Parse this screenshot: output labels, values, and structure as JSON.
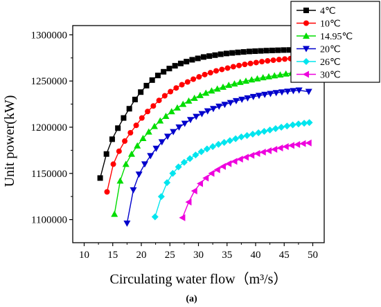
{
  "chart_data": {
    "type": "line",
    "xlabel": "Circulating water flow（m³/s）",
    "ylabel": "Unit power(kW)",
    "panel_label": "(a)",
    "xlim": [
      8,
      52
    ],
    "ylim": [
      1075000,
      1310000
    ],
    "xticks": [
      10,
      15,
      20,
      25,
      30,
      35,
      40,
      45,
      50
    ],
    "yticks": [
      1100000,
      1150000,
      1200000,
      1250000,
      1300000
    ],
    "xtick_labels": [
      "10",
      "15",
      "20",
      "25",
      "30",
      "35",
      "40",
      "45",
      "50"
    ],
    "ytick_labels": [
      "1100000",
      "1150000",
      "1200000",
      "1250000",
      "1300000"
    ],
    "legend_position": "top-right",
    "series": [
      {
        "name": "4℃",
        "color": "#000000",
        "marker": "square",
        "x": [
          12.8,
          13.9,
          14.9,
          15.9,
          16.9,
          17.9,
          18.9,
          19.9,
          20.9,
          21.9,
          22.9,
          23.9,
          24.9,
          25.9,
          26.9,
          27.9,
          28.9,
          29.9,
          30.9,
          31.9,
          32.9,
          33.9,
          34.9,
          35.9,
          36.9,
          37.9,
          38.9,
          39.9,
          40.9,
          41.9,
          42.9,
          43.9,
          44.9,
          45.9,
          46.9,
          47.9,
          48.9,
          49.4
        ],
        "y": [
          1145000,
          1171000,
          1187000,
          1199000,
          1210000,
          1220000,
          1230000,
          1238000,
          1245000,
          1251000,
          1256000,
          1260000,
          1263500,
          1266500,
          1269000,
          1271000,
          1273000,
          1274500,
          1276000,
          1277000,
          1278000,
          1279000,
          1279800,
          1280400,
          1281000,
          1281500,
          1282000,
          1282300,
          1282600,
          1282900,
          1283100,
          1283300,
          1283500,
          1283600,
          1283700,
          1283800,
          1283900,
          1284000
        ]
      },
      {
        "name": "10℃",
        "color": "#ff0000",
        "marker": "circle",
        "x": [
          14.0,
          15.1,
          16.1,
          17.1,
          18.1,
          19.1,
          20.1,
          21.1,
          22.1,
          23.1,
          24.1,
          25.1,
          26.1,
          27.1,
          28.1,
          29.1,
          30.1,
          31.1,
          32.1,
          33.1,
          34.1,
          35.1,
          36.1,
          37.1,
          38.1,
          39.1,
          40.1,
          41.1,
          42.1,
          43.1,
          44.1,
          45.1,
          46.1,
          47.1,
          48.1,
          49.4
        ],
        "y": [
          1130000,
          1160000,
          1174000,
          1185000,
          1194000,
          1202000,
          1210000,
          1217000,
          1223000,
          1229000,
          1234000,
          1238500,
          1242500,
          1246000,
          1249000,
          1252000,
          1254500,
          1257000,
          1259000,
          1261000,
          1262500,
          1264000,
          1265500,
          1266800,
          1268000,
          1269000,
          1270000,
          1271000,
          1271800,
          1272500,
          1273200,
          1273800,
          1274300,
          1274800,
          1275200,
          1276000
        ]
      },
      {
        "name": "14.95℃",
        "color": "#00dd00",
        "marker": "triangle-up",
        "x": [
          15.3,
          16.3,
          17.3,
          18.3,
          19.3,
          20.3,
          21.3,
          22.3,
          23.3,
          24.3,
          25.3,
          26.3,
          27.3,
          28.3,
          29.3,
          30.3,
          31.3,
          32.3,
          33.3,
          34.3,
          35.3,
          36.3,
          37.3,
          38.3,
          39.3,
          40.3,
          41.3,
          42.3,
          43.3,
          44.3,
          45.3,
          46.3,
          47.3,
          48.3,
          49.3
        ],
        "y": [
          1106000,
          1142000,
          1160000,
          1171000,
          1180000,
          1188000,
          1195000,
          1201000,
          1207000,
          1212000,
          1217000,
          1221000,
          1225000,
          1228500,
          1231500,
          1234500,
          1237000,
          1239500,
          1241500,
          1243500,
          1245500,
          1247000,
          1248700,
          1250000,
          1251400,
          1252600,
          1253800,
          1254800,
          1255800,
          1256800,
          1257800,
          1258600,
          1259400,
          1260200,
          1262000
        ]
      },
      {
        "name": "20℃",
        "color": "#0000cc",
        "marker": "triangle-down",
        "x": [
          17.5,
          18.6,
          19.6,
          20.6,
          21.6,
          22.6,
          23.6,
          24.6,
          25.6,
          26.6,
          27.6,
          28.6,
          29.6,
          30.6,
          31.6,
          32.6,
          33.6,
          34.6,
          35.6,
          36.6,
          37.6,
          38.6,
          39.6,
          40.6,
          41.6,
          42.6,
          43.6,
          44.6,
          45.6,
          46.6,
          47.6,
          49.3
        ],
        "y": [
          1096000,
          1132000,
          1149000,
          1160000,
          1169000,
          1177000,
          1184000,
          1190000,
          1195000,
          1200000,
          1204000,
          1208000,
          1211500,
          1214500,
          1217500,
          1220000,
          1222500,
          1224500,
          1226500,
          1228500,
          1230000,
          1231500,
          1233000,
          1234200,
          1235300,
          1236300,
          1237200,
          1238000,
          1238700,
          1239400,
          1240000,
          1238500
        ]
      },
      {
        "name": "26℃",
        "color": "#00e5ee",
        "marker": "diamond",
        "x": [
          22.4,
          23.5,
          24.5,
          25.5,
          26.5,
          27.5,
          28.5,
          29.5,
          30.5,
          31.5,
          32.5,
          33.5,
          34.5,
          35.5,
          36.5,
          37.5,
          38.5,
          39.5,
          40.5,
          41.5,
          42.5,
          43.5,
          44.5,
          45.5,
          46.5,
          47.5,
          48.5,
          49.4
        ],
        "y": [
          1103000,
          1125000,
          1140000,
          1150000,
          1157000,
          1162000,
          1166000,
          1170000,
          1173500,
          1176500,
          1179000,
          1181500,
          1183500,
          1185500,
          1187500,
          1189500,
          1191000,
          1192500,
          1194000,
          1195500,
          1197000,
          1198500,
          1200000,
          1201300,
          1202500,
          1203500,
          1204300,
          1205000
        ]
      },
      {
        "name": "30℃",
        "color": "#ee00dd",
        "marker": "triangle-left",
        "x": [
          27.2,
          28.3,
          29.3,
          30.3,
          31.3,
          32.3,
          33.3,
          34.3,
          35.3,
          36.3,
          37.3,
          38.3,
          39.3,
          40.3,
          41.3,
          42.3,
          43.3,
          44.3,
          45.3,
          46.3,
          47.3,
          48.3,
          49.3
        ],
        "y": [
          1102000,
          1119000,
          1131000,
          1139000,
          1145000,
          1150000,
          1154000,
          1157500,
          1160500,
          1163000,
          1165500,
          1167500,
          1169500,
          1171500,
          1173000,
          1174500,
          1176000,
          1177500,
          1179000,
          1180200,
          1181300,
          1182300,
          1183000
        ]
      }
    ]
  }
}
